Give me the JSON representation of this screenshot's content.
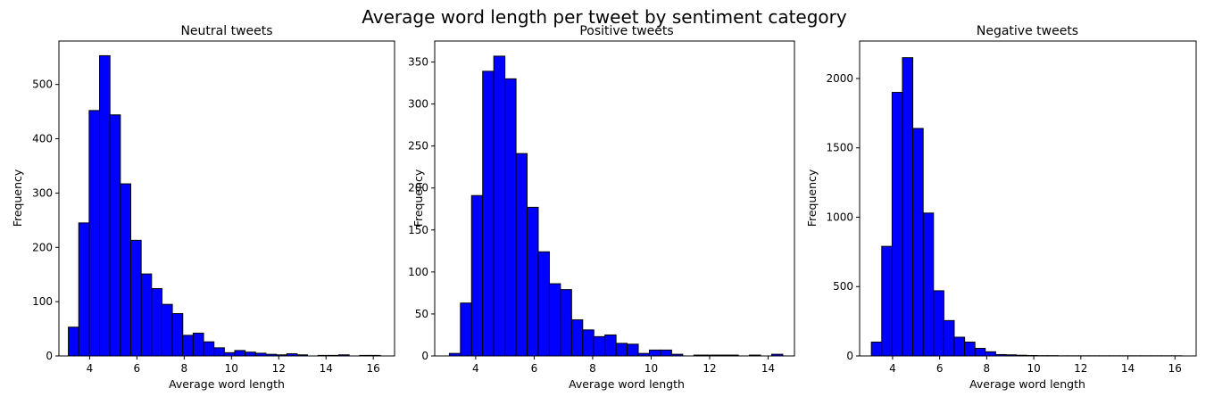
{
  "figure": {
    "suptitle": "Average word length per tweet by sentiment category"
  },
  "colors": {
    "bar_fill": "#0000ff",
    "bar_edge": "#000000",
    "axes": "#000000"
  },
  "chart_data": [
    {
      "type": "bar",
      "title": "Neutral tweets",
      "xlabel": "Average word length",
      "ylabel": "Frequency",
      "xlim": [
        2.7,
        16.9
      ],
      "ylim": [
        0,
        580
      ],
      "xticks": [
        4,
        6,
        8,
        10,
        12,
        14,
        16
      ],
      "yticks": [
        0,
        100,
        200,
        300,
        400,
        500
      ],
      "bin_start": 3.1,
      "bin_width": 0.44,
      "values": [
        53,
        245,
        452,
        553,
        444,
        317,
        213,
        151,
        124,
        95,
        78,
        38,
        42,
        26,
        15,
        6,
        10,
        7,
        5,
        3,
        2,
        4,
        2,
        0,
        1,
        1,
        2,
        0,
        1,
        1
      ]
    },
    {
      "type": "bar",
      "title": "Positive tweets",
      "xlabel": "Average word length",
      "ylabel": "Frequency",
      "xlim": [
        2.6,
        14.9
      ],
      "ylim": [
        0,
        375
      ],
      "xticks": [
        2,
        4,
        6,
        8,
        10,
        12,
        14
      ],
      "yticks": [
        0,
        50,
        100,
        150,
        200,
        250,
        300,
        350
      ],
      "bin_start": 3.1,
      "bin_width": 0.38,
      "values": [
        3,
        63,
        191,
        339,
        357,
        330,
        241,
        177,
        124,
        86,
        79,
        43,
        31,
        23,
        25,
        15,
        14,
        3,
        7,
        7,
        2,
        0,
        1,
        1,
        1,
        1,
        0,
        1,
        0,
        2
      ]
    },
    {
      "type": "bar",
      "title": "Negative tweets",
      "xlabel": "Average word length",
      "ylabel": "Frequency",
      "xlim": [
        2.6,
        16.9
      ],
      "ylim": [
        0,
        2270
      ],
      "xticks": [
        4,
        6,
        8,
        10,
        12,
        14,
        16
      ],
      "yticks": [
        0,
        500,
        1000,
        1500,
        2000
      ],
      "bin_start": 3.1,
      "bin_width": 0.44,
      "values": [
        100,
        790,
        1900,
        2150,
        1640,
        1030,
        470,
        255,
        135,
        100,
        55,
        30,
        10,
        8,
        5,
        3,
        2,
        2,
        1,
        1,
        1,
        1,
        1,
        1,
        1,
        1,
        1,
        1,
        1,
        1
      ]
    }
  ]
}
